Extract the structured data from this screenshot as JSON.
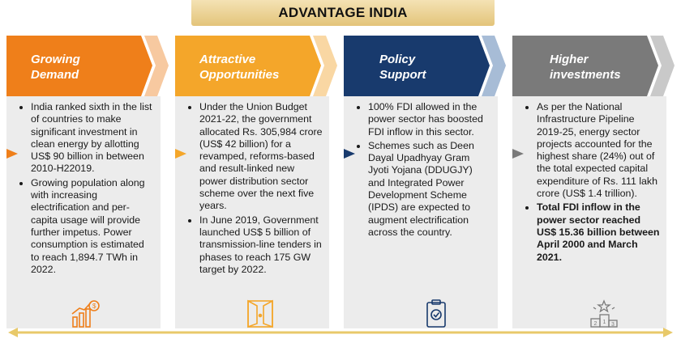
{
  "title": "ADVANTAGE INDIA",
  "colors": {
    "orange": "#ef7f1a",
    "amber": "#f4a62a",
    "navy": "#183a6d",
    "gray": "#7a7a7a",
    "panel": "#ececec",
    "timeline": "#e8c96a"
  },
  "columns": [
    {
      "id": "growing-demand",
      "title_line1": "Growing",
      "title_line2": "Demand",
      "color": "#ef7f1a",
      "icon": "growth-chart-icon",
      "bullets": [
        {
          "text": "India ranked sixth in the list of countries to make significant investment in clean energy by allotting US$ 90 billion in between 2010-H22019.",
          "bold": false
        },
        {
          "text": "Growing population along with increasing electrification and per-capita usage will provide further impetus. Power consumption is estimated to reach 1,894.7 TWh in 2022.",
          "bold": false
        }
      ]
    },
    {
      "id": "attractive-opportunities",
      "title_line1": "Attractive",
      "title_line2": "Opportunities",
      "color": "#f4a62a",
      "icon": "open-door-icon",
      "bullets": [
        {
          "text": "Under the Union Budget 2021-22, the government allocated Rs. 305,984 crore (US$ 42 billion) for a revamped, reforms-based and result-linked new power distribution sector scheme over the next five years.",
          "bold": false
        },
        {
          "text": "In June 2019, Government launched US$ 5 billion of transmission-line tenders in phases to reach 175 GW target by 2022.",
          "bold": false
        }
      ]
    },
    {
      "id": "policy-support",
      "title_line1": "Policy",
      "title_line2": "Support",
      "color": "#183a6d",
      "icon": "policy-document-icon",
      "bullets": [
        {
          "text": "100% FDI allowed in the power sector has boosted FDI inflow in this sector.",
          "bold": false
        },
        {
          "text": "Schemes such as Deen Dayal Upadhyay Gram Jyoti Yojana (DDUGJY) and Integrated Power Development Scheme (IPDS) are expected to augment electrification across the country.",
          "bold": false
        }
      ]
    },
    {
      "id": "higher-investments",
      "title_line1": "Higher",
      "title_line2": "investments",
      "color": "#7a7a7a",
      "icon": "podium-icon",
      "bullets": [
        {
          "text": "As per the National Infrastructure Pipeline 2019-25, energy sector projects accounted for the highest share (24%) out of the total expected capital expenditure of Rs. 111 lakh crore (US$ 1.4 trillion).",
          "bold": false
        },
        {
          "text": "Total FDI inflow in the power sector reached US$ 15.36 billion between April 2000 and March 2021.",
          "bold": true
        }
      ]
    }
  ],
  "podium_labels": [
    "2",
    "1",
    "3"
  ]
}
